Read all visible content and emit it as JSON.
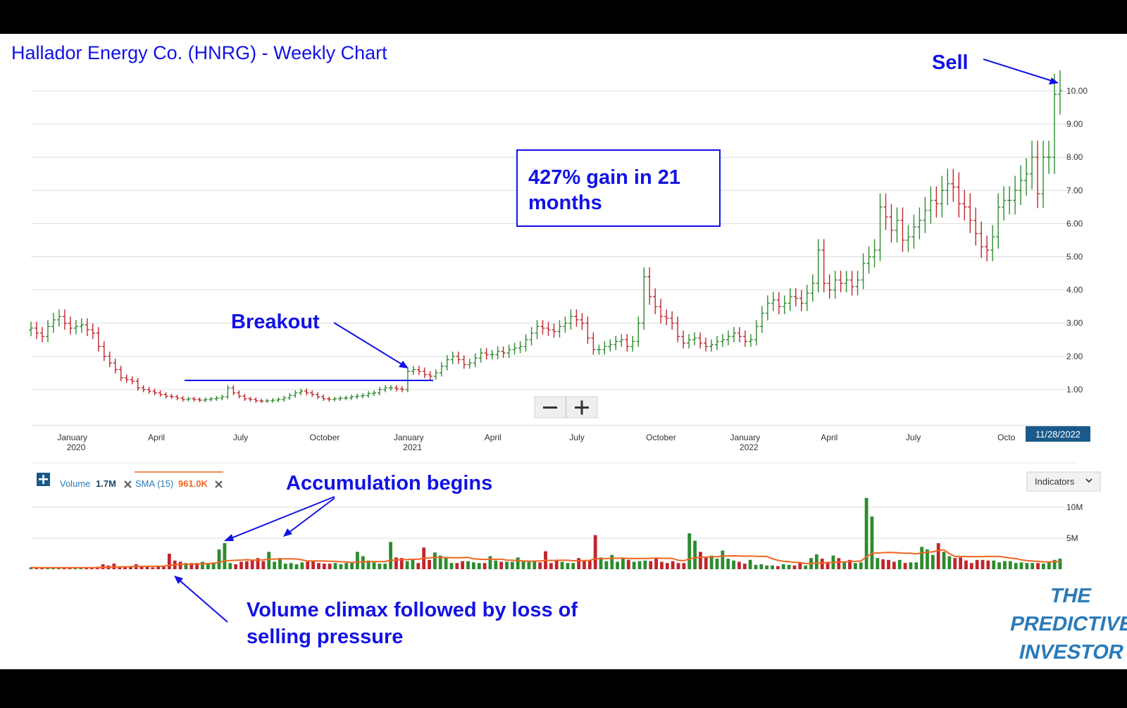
{
  "title": "Hallador Energy Co. (HNRG) - Weekly Chart",
  "colors": {
    "up": "#2e8b2e",
    "down": "#c0262d",
    "neutral": "#a8a8a8",
    "annotation": "#1212e6",
    "sma": "#f26522",
    "grid": "#dcdcdc",
    "date_badge": "#1a5a8a"
  },
  "price_axis": {
    "ticks": [
      "1.00",
      "2.00",
      "3.00",
      "4.00",
      "5.00",
      "6.00",
      "7.00",
      "8.00",
      "9.00",
      "10.00"
    ]
  },
  "time_axis": [
    {
      "month": "January",
      "year": "2020"
    },
    {
      "month": "April",
      "year": ""
    },
    {
      "month": "July",
      "year": ""
    },
    {
      "month": "October",
      "year": ""
    },
    {
      "month": "January",
      "year": "2021"
    },
    {
      "month": "April",
      "year": ""
    },
    {
      "month": "July",
      "year": ""
    },
    {
      "month": "October",
      "year": ""
    },
    {
      "month": "January",
      "year": "2022"
    },
    {
      "month": "April",
      "year": ""
    },
    {
      "month": "July",
      "year": ""
    },
    {
      "month": "Octo",
      "year": ""
    }
  ],
  "date_badge": "11/28/2022",
  "zoom": {
    "minus_icon": "minus-icon",
    "plus_icon": "plus-icon"
  },
  "annotations": {
    "sell": "Sell",
    "gain_box_line1": "427% gain in 21",
    "gain_box_line2": "months",
    "breakout": "Breakout",
    "accumulation": "Accumulation begins",
    "volume_climax_line1": "Volume climax followed by loss of",
    "volume_climax_line2": "selling pressure"
  },
  "volume_panel": {
    "add_icon": "plus-icon",
    "volume_label": "Volume",
    "volume_value": "1.7M",
    "sma_label": "SMA (15)",
    "sma_value": "961.0K",
    "remove_icon": "close-icon",
    "indicators_label": "Indicators",
    "indicators_icon": "chevron-down-icon",
    "ticks": [
      "5M",
      "10M"
    ]
  },
  "brand": {
    "line1": "THE",
    "line2": "PREDICTIVE",
    "line3": "INVESTOR"
  },
  "chart_data": {
    "type": "ohlc",
    "title": "Hallador Energy Co. (HNRG) - Weekly Chart",
    "interval": "weekly",
    "x_range": [
      "2019-11",
      "2022-11-28"
    ],
    "y_range": [
      0,
      10.5
    ],
    "y_ticks": [
      1,
      2,
      3,
      4,
      5,
      6,
      7,
      8,
      9,
      10
    ],
    "grid": true,
    "price_close_approx": [
      2.85,
      2.7,
      2.6,
      2.9,
      3.1,
      3.2,
      3.0,
      2.85,
      2.9,
      2.95,
      2.8,
      2.7,
      2.3,
      2.0,
      1.8,
      1.6,
      1.35,
      1.3,
      1.25,
      1.05,
      1.0,
      0.95,
      0.9,
      0.85,
      0.8,
      0.78,
      0.74,
      0.7,
      0.72,
      0.7,
      0.68,
      0.7,
      0.72,
      0.74,
      0.78,
      1.05,
      0.9,
      0.8,
      0.72,
      0.7,
      0.66,
      0.65,
      0.66,
      0.68,
      0.7,
      0.75,
      0.82,
      0.9,
      0.95,
      0.9,
      0.85,
      0.78,
      0.72,
      0.7,
      0.72,
      0.74,
      0.75,
      0.78,
      0.8,
      0.82,
      0.88,
      0.9,
      1.0,
      1.05,
      1.05,
      1.02,
      1.0,
      1.55,
      1.6,
      1.55,
      1.45,
      1.4,
      1.5,
      1.7,
      1.9,
      2.0,
      1.9,
      1.75,
      1.8,
      1.95,
      2.1,
      2.05,
      2.05,
      2.15,
      2.1,
      2.2,
      2.25,
      2.3,
      2.5,
      2.7,
      2.9,
      2.85,
      2.8,
      2.75,
      2.9,
      3.0,
      3.2,
      3.1,
      3.0,
      2.55,
      2.2,
      2.2,
      2.3,
      2.35,
      2.45,
      2.5,
      2.3,
      2.45,
      3.0,
      4.4,
      3.8,
      3.5,
      3.2,
      3.15,
      3.0,
      2.6,
      2.4,
      2.5,
      2.55,
      2.4,
      2.3,
      2.35,
      2.45,
      2.5,
      2.6,
      2.7,
      2.6,
      2.45,
      2.5,
      2.9,
      3.3,
      3.6,
      3.7,
      3.5,
      3.6,
      3.8,
      3.75,
      3.6,
      3.9,
      4.2,
      5.2,
      4.2,
      4.0,
      4.3,
      4.2,
      4.3,
      4.1,
      4.3,
      4.8,
      5.0,
      5.2,
      6.5,
      6.2,
      5.8,
      6.1,
      5.5,
      5.6,
      5.9,
      6.1,
      6.4,
      6.7,
      6.6,
      7.0,
      7.2,
      7.1,
      6.6,
      6.5,
      6.1,
      5.7,
      5.3,
      5.2,
      5.6,
      6.5,
      6.7,
      6.7,
      7.0,
      7.3,
      7.5,
      8.0,
      6.9,
      8.0,
      8.0,
      9.9,
      10.0
    ],
    "breakout_level": 1.3,
    "breakout_date": "December 2020",
    "sell_date": "11/28/2022",
    "gain_pct": 427,
    "volume": {
      "unit": "shares",
      "y_range": [
        0,
        11000000
      ],
      "y_ticks": [
        5000000,
        10000000
      ],
      "latest": "1.7M",
      "sma_period": 15,
      "sma_latest": "961.0K",
      "values_M": [
        0.3,
        0.2,
        0.3,
        0.2,
        0.3,
        0.2,
        0.3,
        0.3,
        0.2,
        0.3,
        0.3,
        0.2,
        0.4,
        0.8,
        0.6,
        0.9,
        0.4,
        0.5,
        0.5,
        0.8,
        0.4,
        0.4,
        0.3,
        0.5,
        0.4,
        2.5,
        1.4,
        1.2,
        1.0,
        1.0,
        1.0,
        1.2,
        1.0,
        1.1,
        3.2,
        4.2,
        1.0,
        0.8,
        1.2,
        1.3,
        1.4,
        1.8,
        1.3,
        2.8,
        1.2,
        1.8,
        0.9,
        1.0,
        0.8,
        1.1,
        1.2,
        1.3,
        1.0,
        0.9,
        0.9,
        1.0,
        0.8,
        1.0,
        1.1,
        2.8,
        2.1,
        1.4,
        1.1,
        0.9,
        0.9,
        4.4,
        1.9,
        1.8,
        1.3,
        1.5,
        1.0,
        3.5,
        1.5,
        2.7,
        2.2,
        2.0,
        1.0,
        1.0,
        1.3,
        1.3,
        1.1,
        1.0,
        1.0,
        2.1,
        1.4,
        1.2,
        1.2,
        1.2,
        1.9,
        1.3,
        1.3,
        1.4,
        1.1,
        2.9,
        1.0,
        1.4,
        1.2,
        1.0,
        1.0,
        1.8,
        1.3,
        1.5,
        5.5,
        1.9,
        1.3,
        2.3,
        1.2,
        1.8,
        1.5,
        1.2,
        1.3,
        1.4,
        1.3,
        1.8,
        1.2,
        1.0,
        1.3,
        1.0,
        1.0,
        5.8,
        4.6,
        2.8,
        1.9,
        2.2,
        1.7,
        3.0,
        1.7,
        1.4,
        1.2,
        0.9,
        1.5,
        0.7,
        0.8,
        0.6,
        0.6,
        0.5,
        0.8,
        0.7,
        0.6,
        1.1,
        0.6,
        1.8,
        2.4,
        1.7,
        1.2,
        2.2,
        1.8,
        1.2,
        1.5,
        1.0,
        1.1,
        11.5,
        8.5,
        1.8,
        1.6,
        1.5,
        1.2,
        1.5,
        1.0,
        1.1,
        1.1,
        3.6,
        3.2,
        2.3,
        4.2,
        2.8,
        2.1,
        1.8,
        1.9,
        1.4,
        1.0,
        1.5,
        1.5,
        1.4,
        1.4,
        1.1,
        1.3,
        1.3,
        1.0,
        1.1,
        1.0,
        1.0,
        1.0,
        0.9,
        1.2,
        1.5,
        1.7
      ]
    }
  }
}
